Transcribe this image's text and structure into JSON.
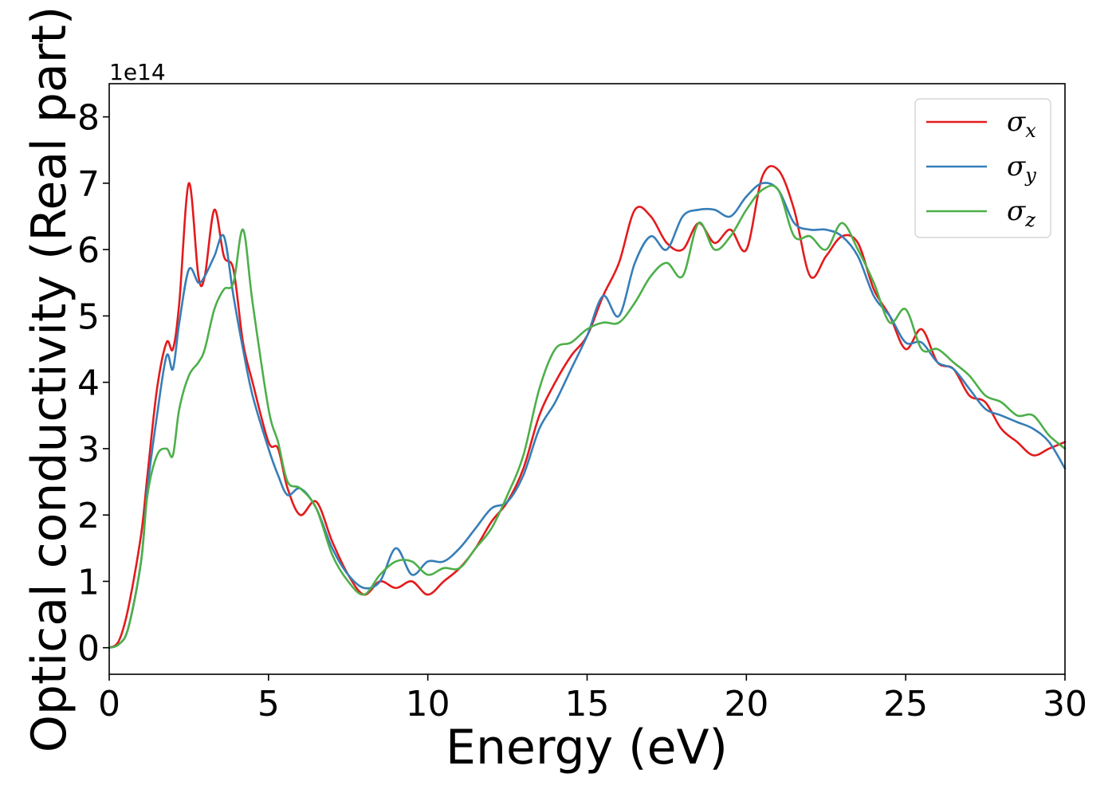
{
  "chart_data": {
    "type": "line",
    "title": "",
    "xlabel": "Energy (eV)",
    "ylabel": "Optical conductivity (Real part)",
    "y_offset_label": "1e14",
    "xlim": [
      0,
      30
    ],
    "ylim": [
      -0.4,
      8.5
    ],
    "x_ticks": [
      0,
      5,
      10,
      15,
      20,
      25,
      30
    ],
    "x_tick_labels": [
      "0",
      "5",
      "10",
      "15",
      "20",
      "25",
      "30"
    ],
    "y_ticks": [
      0,
      1,
      2,
      3,
      4,
      5,
      6,
      7,
      8
    ],
    "y_tick_labels": [
      "0",
      "1",
      "2",
      "3",
      "4",
      "5",
      "6",
      "7",
      "8"
    ],
    "grid": false,
    "legend_position": "top-right",
    "series": [
      {
        "name": "σx",
        "legend_symbol": "σ",
        "legend_subscript": "x",
        "color": "#e41a1c",
        "x": [
          0,
          0.3,
          0.6,
          1.0,
          1.2,
          1.5,
          1.8,
          2.0,
          2.2,
          2.5,
          2.8,
          3.0,
          3.3,
          3.6,
          3.9,
          4.2,
          4.5,
          5.0,
          5.3,
          5.6,
          6.0,
          6.5,
          7.0,
          7.5,
          8.0,
          8.5,
          9.0,
          9.5,
          10.0,
          10.5,
          11.0,
          11.5,
          12.0,
          12.5,
          13.0,
          13.5,
          14.0,
          14.5,
          15.0,
          15.5,
          16.0,
          16.5,
          17.0,
          17.5,
          18.0,
          18.5,
          19.0,
          19.5,
          20.0,
          20.5,
          21.0,
          21.5,
          22.0,
          22.5,
          23.0,
          23.5,
          24.0,
          24.5,
          25.0,
          25.5,
          26.0,
          26.5,
          27.0,
          27.5,
          28.0,
          28.5,
          29.0,
          29.5,
          30.0
        ],
        "values": [
          0,
          0.1,
          0.6,
          1.7,
          2.6,
          3.9,
          4.6,
          4.5,
          5.2,
          7.0,
          5.6,
          5.6,
          6.6,
          5.9,
          5.7,
          4.6,
          4.0,
          3.1,
          3.0,
          2.4,
          2.0,
          2.2,
          1.6,
          1.1,
          0.8,
          1.0,
          0.9,
          1.0,
          0.8,
          1.0,
          1.2,
          1.5,
          1.9,
          2.2,
          2.7,
          3.5,
          4.0,
          4.4,
          4.7,
          5.3,
          5.8,
          6.6,
          6.5,
          6.1,
          6.0,
          6.4,
          6.1,
          6.3,
          6.0,
          7.1,
          7.2,
          6.6,
          5.6,
          5.9,
          6.2,
          6.1,
          5.4,
          5.0,
          4.5,
          4.8,
          4.3,
          4.2,
          3.8,
          3.7,
          3.3,
          3.1,
          2.9,
          3.0,
          3.1
        ]
      },
      {
        "name": "σy",
        "legend_symbol": "σ",
        "legend_subscript": "y",
        "color": "#377eb8",
        "x": [
          0,
          0.3,
          0.6,
          1.0,
          1.2,
          1.5,
          1.8,
          2.0,
          2.2,
          2.5,
          2.8,
          3.0,
          3.3,
          3.6,
          3.9,
          4.2,
          4.5,
          5.0,
          5.3,
          5.6,
          6.0,
          6.5,
          7.0,
          7.5,
          8.0,
          8.5,
          9.0,
          9.5,
          10.0,
          10.5,
          11.0,
          11.5,
          12.0,
          12.5,
          13.0,
          13.5,
          14.0,
          14.5,
          15.0,
          15.5,
          16.0,
          16.5,
          17.0,
          17.5,
          18.0,
          18.5,
          19.0,
          19.5,
          20.0,
          20.5,
          21.0,
          21.5,
          22.0,
          22.5,
          23.0,
          23.5,
          24.0,
          24.5,
          25.0,
          25.5,
          26.0,
          26.5,
          27.0,
          27.5,
          28.0,
          28.5,
          29.0,
          29.5,
          30.0
        ],
        "values": [
          0,
          0.05,
          0.3,
          1.3,
          2.4,
          3.5,
          4.4,
          4.2,
          4.9,
          5.7,
          5.5,
          5.6,
          5.9,
          6.2,
          5.3,
          4.5,
          3.8,
          3.0,
          2.6,
          2.3,
          2.4,
          2.1,
          1.5,
          1.1,
          0.9,
          1.0,
          1.5,
          1.1,
          1.3,
          1.3,
          1.5,
          1.8,
          2.1,
          2.2,
          2.6,
          3.3,
          3.7,
          4.2,
          4.7,
          5.3,
          5.0,
          5.8,
          6.2,
          6.0,
          6.5,
          6.6,
          6.6,
          6.5,
          6.8,
          7.0,
          6.9,
          6.4,
          6.3,
          6.3,
          6.2,
          5.9,
          5.3,
          5.0,
          4.6,
          4.6,
          4.3,
          4.2,
          3.9,
          3.6,
          3.5,
          3.4,
          3.3,
          3.1,
          2.7
        ]
      },
      {
        "name": "σz",
        "legend_symbol": "σ",
        "legend_subscript": "z",
        "color": "#4daf4a",
        "x": [
          0,
          0.3,
          0.6,
          1.0,
          1.2,
          1.5,
          1.8,
          2.0,
          2.2,
          2.5,
          2.8,
          3.0,
          3.3,
          3.6,
          3.9,
          4.2,
          4.5,
          5.0,
          5.3,
          5.6,
          6.0,
          6.5,
          7.0,
          7.5,
          8.0,
          8.5,
          9.0,
          9.5,
          10.0,
          10.5,
          11.0,
          11.5,
          12.0,
          12.5,
          13.0,
          13.5,
          14.0,
          14.5,
          15.0,
          15.5,
          16.0,
          16.5,
          17.0,
          17.5,
          18.0,
          18.5,
          19.0,
          19.5,
          20.0,
          20.5,
          21.0,
          21.5,
          22.0,
          22.5,
          23.0,
          23.5,
          24.0,
          24.5,
          25.0,
          25.5,
          26.0,
          26.5,
          27.0,
          27.5,
          28.0,
          28.5,
          29.0,
          29.5,
          30.0
        ],
        "values": [
          0,
          0.05,
          0.3,
          1.3,
          2.3,
          2.9,
          3.0,
          2.9,
          3.6,
          4.1,
          4.3,
          4.5,
          5.1,
          5.4,
          5.5,
          6.3,
          5.2,
          3.6,
          3.1,
          2.5,
          2.4,
          2.1,
          1.4,
          1.0,
          0.8,
          1.1,
          1.3,
          1.3,
          1.1,
          1.2,
          1.2,
          1.5,
          1.8,
          2.3,
          2.9,
          3.9,
          4.5,
          4.6,
          4.8,
          4.9,
          4.9,
          5.2,
          5.6,
          5.8,
          5.6,
          6.4,
          6.0,
          6.2,
          6.6,
          6.9,
          6.9,
          6.2,
          6.2,
          6.0,
          6.4,
          6.0,
          5.5,
          4.9,
          5.1,
          4.5,
          4.5,
          4.3,
          4.1,
          3.8,
          3.7,
          3.5,
          3.5,
          3.2,
          3.0
        ]
      }
    ]
  }
}
